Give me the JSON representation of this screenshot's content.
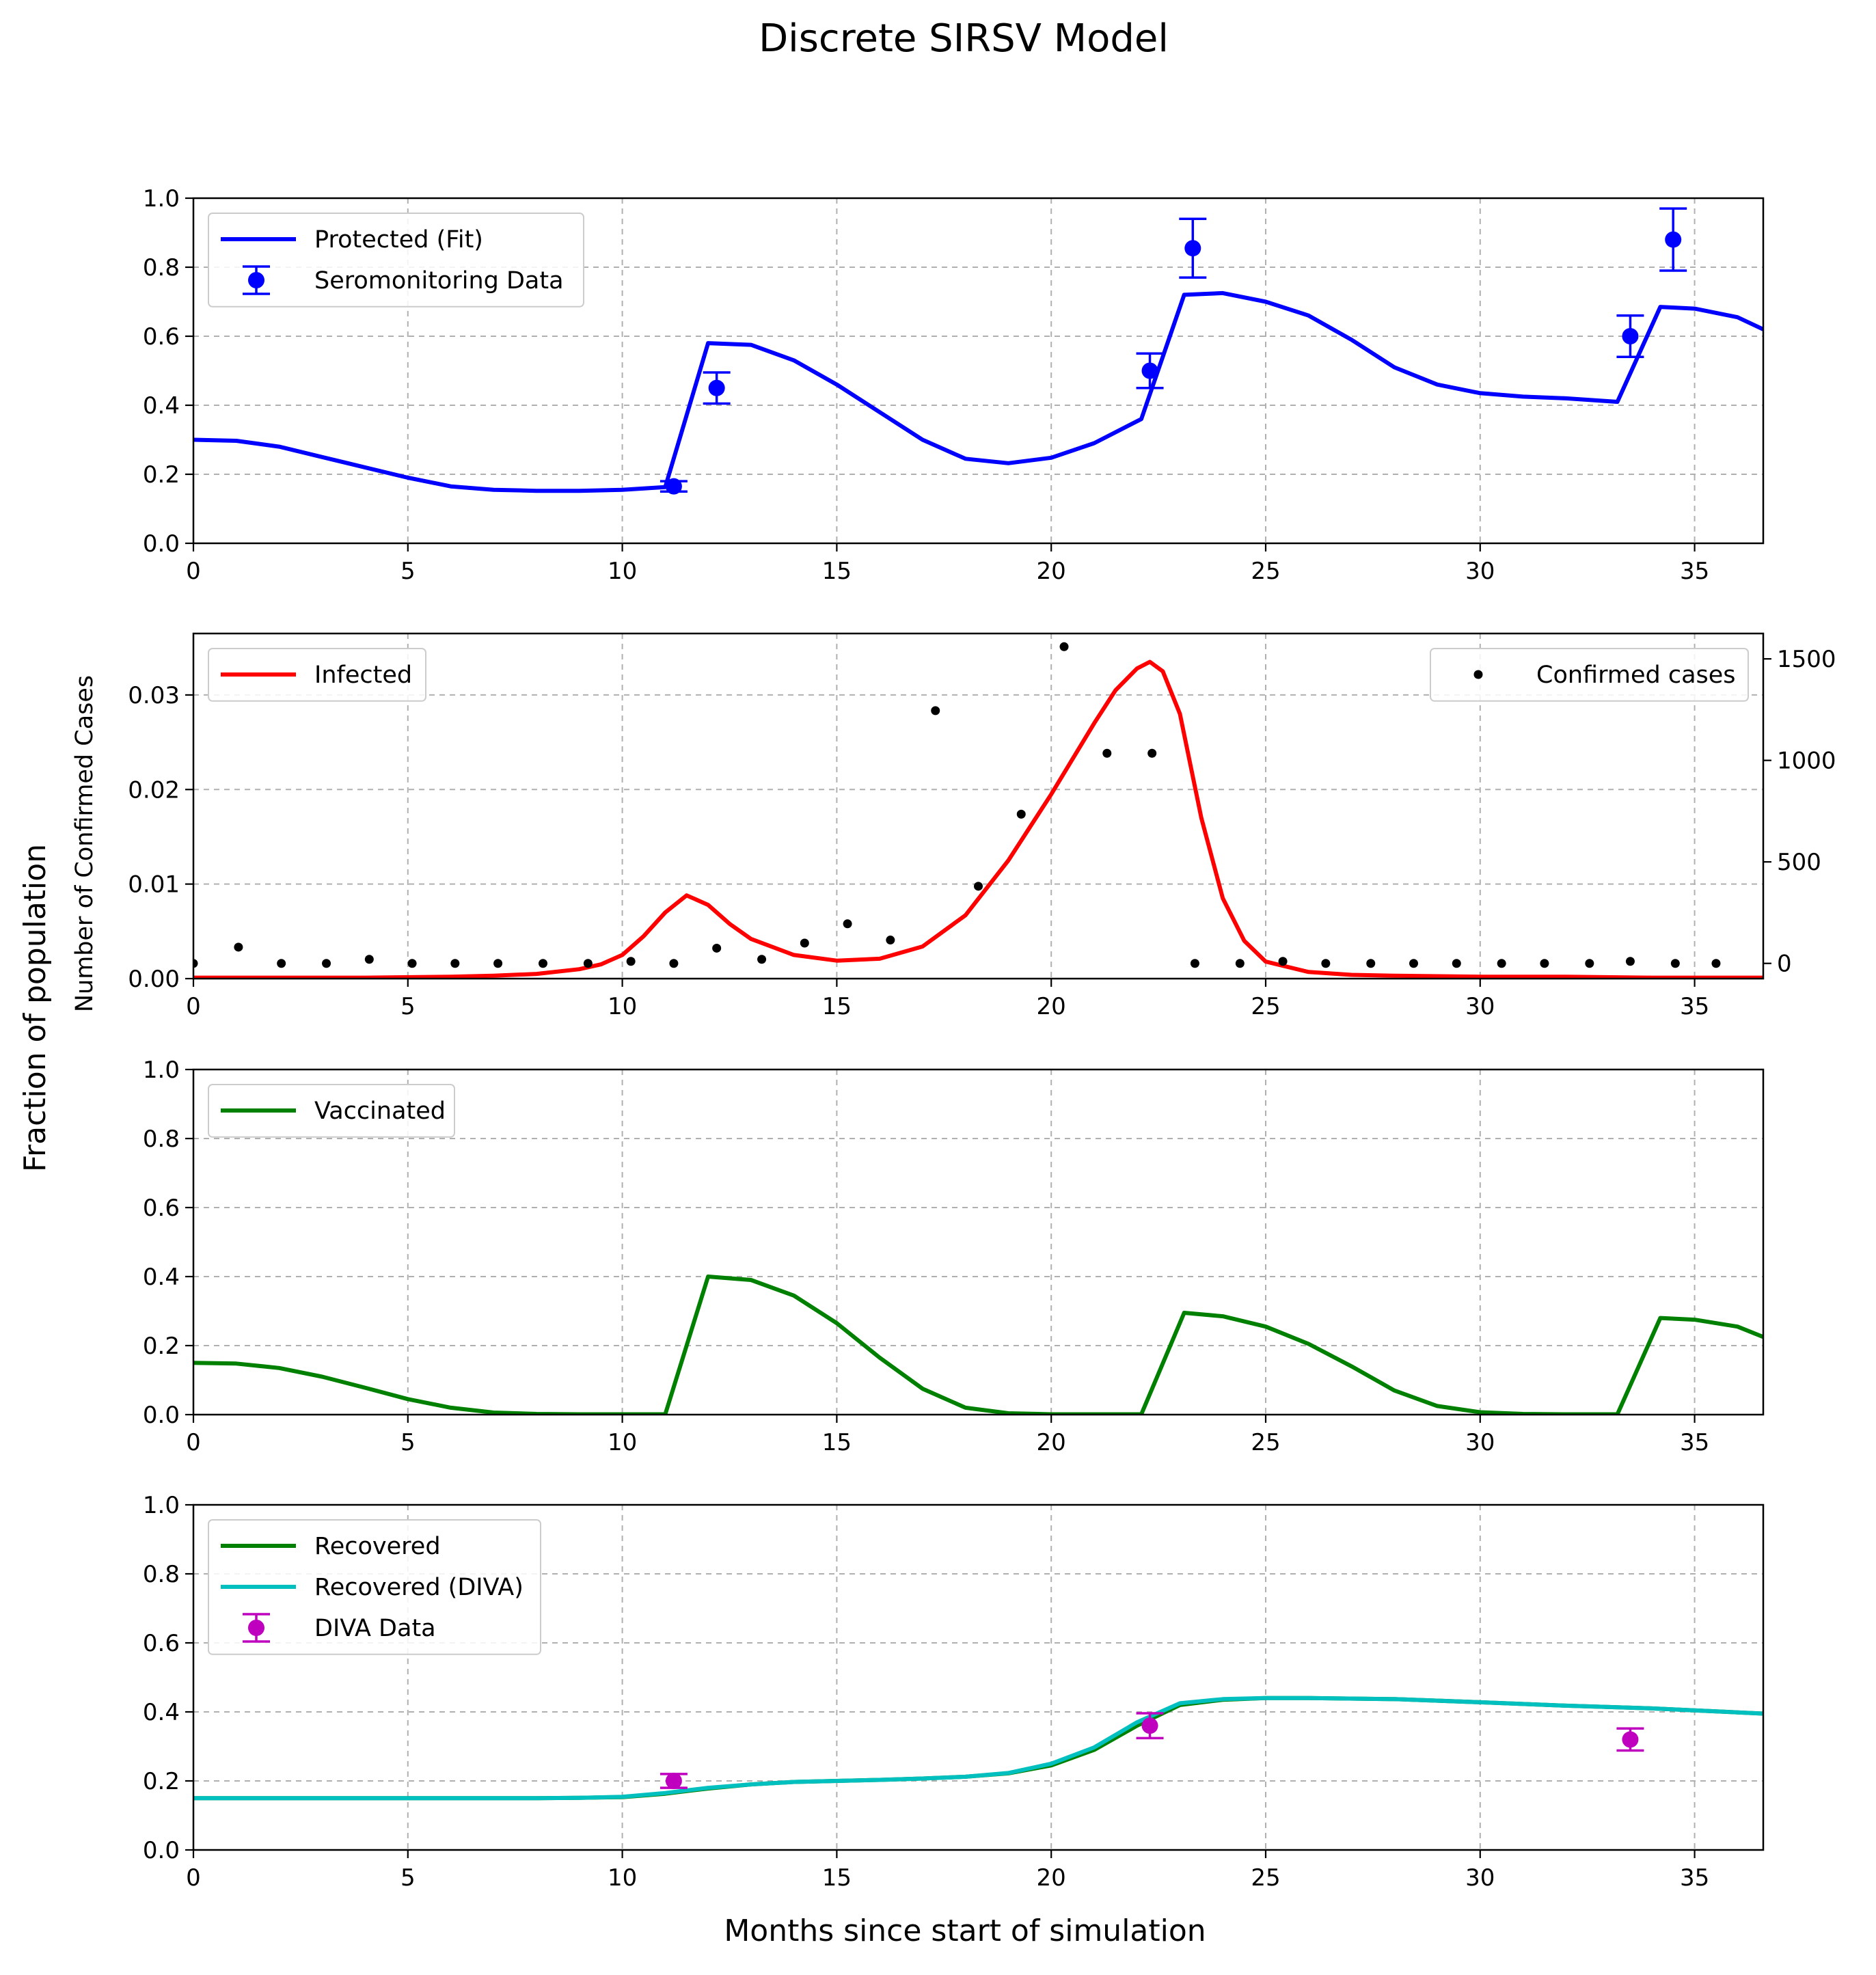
{
  "figure": {
    "suptitle": "Discrete SIRSV Model",
    "supylabel": "Fraction of population",
    "xlabel": "Months since start of simulation"
  },
  "chart_data": [
    {
      "type": "line",
      "xlim": [
        0,
        36.6
      ],
      "ylim": [
        0,
        1.0
      ],
      "xticks": [
        0,
        5,
        10,
        15,
        20,
        25,
        30,
        35
      ],
      "yticks": [
        0.0,
        0.2,
        0.4,
        0.6,
        0.8,
        1.0
      ],
      "ytick_labels": [
        "0.0",
        "0.2",
        "0.4",
        "0.6",
        "0.8",
        "1.0"
      ],
      "grid": true,
      "legend_position": "upper-left",
      "series": [
        {
          "name": "Protected (Fit)",
          "kind": "line",
          "color": "#0000ff",
          "x": [
            0,
            1,
            2,
            3,
            4,
            5,
            6,
            7,
            8,
            9,
            10,
            11,
            12,
            13,
            14,
            15,
            16,
            17,
            18,
            19,
            20,
            21,
            22.1,
            23.1,
            24,
            25,
            26,
            27,
            28,
            29,
            30,
            31,
            32,
            33.2,
            34.2,
            35,
            36,
            36.6
          ],
          "y": [
            0.3,
            0.297,
            0.28,
            0.25,
            0.22,
            0.19,
            0.165,
            0.155,
            0.152,
            0.152,
            0.155,
            0.163,
            0.58,
            0.575,
            0.53,
            0.46,
            0.38,
            0.3,
            0.245,
            0.232,
            0.248,
            0.29,
            0.36,
            0.72,
            0.725,
            0.7,
            0.66,
            0.59,
            0.51,
            0.46,
            0.435,
            0.425,
            0.42,
            0.41,
            0.685,
            0.68,
            0.655,
            0.62
          ]
        },
        {
          "name": "Seromonitoring Data",
          "kind": "errorbar",
          "color": "#0000ff",
          "x": [
            11.2,
            12.2,
            22.3,
            23.3,
            33.5,
            34.5
          ],
          "y": [
            0.165,
            0.45,
            0.5,
            0.855,
            0.6,
            0.88
          ],
          "yerr": [
            0.015,
            0.045,
            0.05,
            0.085,
            0.06,
            0.09
          ]
        }
      ]
    },
    {
      "type": "line",
      "xlim": [
        0,
        36.6
      ],
      "ylim": [
        0,
        0.0365
      ],
      "xticks": [
        0,
        5,
        10,
        15,
        20,
        25,
        30,
        35
      ],
      "yticks": [
        0.0,
        0.01,
        0.02,
        0.03
      ],
      "ytick_labels": [
        "0.00",
        "0.01",
        "0.02",
        "0.03"
      ],
      "y2label": "Number of Confirmed Cases",
      "y2lim": [
        -75,
        1625
      ],
      "y2ticks": [
        0,
        500,
        1000,
        1500
      ],
      "grid": true,
      "series": [
        {
          "name": "Infected",
          "kind": "line",
          "axis": "left",
          "color": "#ff0000",
          "legend_position": "upper-left",
          "x": [
            0,
            2,
            4,
            6,
            7,
            8,
            9,
            9.5,
            10,
            10.5,
            11,
            11.5,
            12,
            12.5,
            13,
            14,
            15,
            16,
            17,
            18,
            19,
            20,
            21,
            21.5,
            22,
            22.3,
            22.6,
            23,
            23.5,
            24,
            24.5,
            25,
            26,
            27,
            28,
            30,
            32,
            34,
            36.6
          ],
          "y": [
            0.0001,
            0.0001,
            0.0001,
            0.0002,
            0.0003,
            0.0005,
            0.001,
            0.0015,
            0.0025,
            0.0045,
            0.007,
            0.0088,
            0.0078,
            0.0058,
            0.0042,
            0.0025,
            0.0019,
            0.0021,
            0.0034,
            0.0067,
            0.0125,
            0.0195,
            0.027,
            0.0305,
            0.0328,
            0.0335,
            0.0325,
            0.028,
            0.017,
            0.0085,
            0.004,
            0.0018,
            0.0007,
            0.0004,
            0.0003,
            0.0002,
            0.0002,
            0.0001,
            0.0001
          ]
        },
        {
          "name": "Confirmed cases",
          "kind": "scatter",
          "axis": "right",
          "color": "#000000",
          "legend_position": "upper-right",
          "x": [
            0,
            1.05,
            2.05,
            3.1,
            4.1,
            5.1,
            6.1,
            7.1,
            8.15,
            9.2,
            10.2,
            11.2,
            12.2,
            13.25,
            14.25,
            15.25,
            16.25,
            17.3,
            18.3,
            19.3,
            20.3,
            21.3,
            22.35,
            23.35,
            24.4,
            25.4,
            26.4,
            27.45,
            28.45,
            29.45,
            30.5,
            31.5,
            32.55,
            33.5,
            34.55,
            35.5
          ],
          "y": [
            0,
            80,
            0,
            0,
            20,
            0,
            0,
            0,
            0,
            0,
            10,
            0,
            75,
            20,
            100,
            195,
            115,
            1245,
            380,
            735,
            1560,
            1035,
            1035,
            0,
            0,
            10,
            0,
            0,
            0,
            0,
            0,
            0,
            0,
            10,
            0,
            0
          ]
        }
      ]
    },
    {
      "type": "line",
      "xlim": [
        0,
        36.6
      ],
      "ylim": [
        0,
        1.0
      ],
      "xticks": [
        0,
        5,
        10,
        15,
        20,
        25,
        30,
        35
      ],
      "yticks": [
        0.0,
        0.2,
        0.4,
        0.6,
        0.8,
        1.0
      ],
      "ytick_labels": [
        "0.0",
        "0.2",
        "0.4",
        "0.6",
        "0.8",
        "1.0"
      ],
      "grid": true,
      "legend_position": "upper-left",
      "series": [
        {
          "name": "Vaccinated",
          "kind": "line",
          "color": "#008000",
          "x": [
            0,
            1,
            2,
            3,
            4,
            5,
            6,
            7,
            8,
            9,
            10,
            11,
            12,
            13,
            14,
            15,
            16,
            17,
            18,
            19,
            20,
            21,
            22.1,
            23.1,
            24,
            25,
            26,
            27,
            28,
            29,
            30,
            31,
            32,
            33.2,
            34.2,
            35,
            36,
            36.6
          ],
          "y": [
            0.15,
            0.148,
            0.135,
            0.11,
            0.078,
            0.045,
            0.02,
            0.006,
            0.002,
            0.001,
            0.001,
            0.001,
            0.4,
            0.39,
            0.345,
            0.265,
            0.165,
            0.075,
            0.02,
            0.004,
            0.001,
            0.001,
            0.001,
            0.295,
            0.285,
            0.255,
            0.205,
            0.14,
            0.07,
            0.025,
            0.007,
            0.002,
            0.001,
            0.001,
            0.28,
            0.275,
            0.255,
            0.225
          ]
        }
      ]
    },
    {
      "type": "line",
      "xlim": [
        0,
        36.6
      ],
      "ylim": [
        0,
        1.0
      ],
      "xticks": [
        0,
        5,
        10,
        15,
        20,
        25,
        30,
        35
      ],
      "yticks": [
        0.0,
        0.2,
        0.4,
        0.6,
        0.8,
        1.0
      ],
      "ytick_labels": [
        "0.0",
        "0.2",
        "0.4",
        "0.6",
        "0.8",
        "1.0"
      ],
      "grid": true,
      "legend_position": "upper-left",
      "series": [
        {
          "name": "Recovered",
          "kind": "line",
          "color": "#008000",
          "x": [
            0,
            2,
            4,
            6,
            8,
            9,
            10,
            11,
            12,
            13,
            14,
            15,
            16,
            17,
            18,
            19,
            20,
            21,
            22,
            23,
            24,
            25,
            26,
            28,
            30,
            32,
            34,
            36.6
          ],
          "y": [
            0.15,
            0.15,
            0.15,
            0.15,
            0.15,
            0.151,
            0.153,
            0.163,
            0.178,
            0.19,
            0.197,
            0.2,
            0.203,
            0.207,
            0.212,
            0.222,
            0.245,
            0.29,
            0.36,
            0.42,
            0.435,
            0.44,
            0.44,
            0.437,
            0.428,
            0.418,
            0.41,
            0.395
          ]
        },
        {
          "name": "Recovered (DIVA)",
          "kind": "line",
          "color": "#00bfbf",
          "x": [
            0,
            2,
            4,
            6,
            8,
            9,
            10,
            11,
            12,
            13,
            14,
            15,
            16,
            17,
            18,
            19,
            20,
            21,
            22,
            23,
            24,
            25,
            26,
            28,
            30,
            32,
            34,
            36.6
          ],
          "y": [
            0.15,
            0.15,
            0.15,
            0.15,
            0.15,
            0.151,
            0.154,
            0.165,
            0.18,
            0.19,
            0.197,
            0.2,
            0.203,
            0.207,
            0.212,
            0.223,
            0.25,
            0.297,
            0.37,
            0.425,
            0.437,
            0.44,
            0.44,
            0.437,
            0.428,
            0.418,
            0.41,
            0.395
          ]
        },
        {
          "name": "DIVA Data",
          "kind": "errorbar",
          "color": "#bf00bf",
          "x": [
            11.2,
            22.3,
            33.5
          ],
          "y": [
            0.2,
            0.36,
            0.32
          ],
          "yerr": [
            0.02,
            0.036,
            0.032
          ]
        }
      ]
    }
  ]
}
